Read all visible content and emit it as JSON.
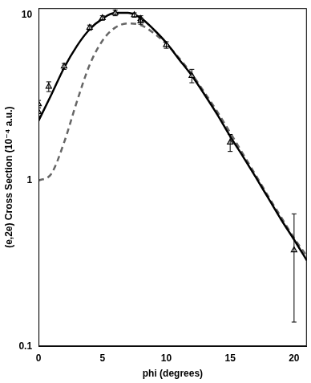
{
  "chart_data": {
    "type": "line",
    "x_label": "phi (degrees)",
    "y_label": "(e,2e) Cross Section (10⁻⁴ a.u.)",
    "log": "y",
    "grid": false,
    "xlim": [
      0,
      21
    ],
    "xticks": [
      0,
      5,
      10,
      15,
      20
    ],
    "ylim": [
      0.1,
      11
    ],
    "yticks": [
      0.1,
      1,
      10
    ],
    "series": [
      {
        "type": "scatter",
        "color": "#000000",
        "marker": "triangle",
        "line_style": "none",
        "x": [
          0,
          0,
          0.8,
          2,
          4,
          5,
          6,
          7.5,
          8,
          8,
          10,
          12,
          15,
          20
        ],
        "values": [
          2.9,
          2.6,
          3.7,
          4.9,
          8.4,
          9.6,
          10.3,
          10.0,
          9.5,
          9.2,
          6.6,
          4.3,
          1.7,
          0.38
        ],
        "yerr_minus": [
          0.15,
          0.15,
          0.25,
          0.2,
          0.3,
          0.3,
          0.4,
          0.3,
          0.4,
          0.4,
          0.3,
          0.4,
          0.2,
          0.24
        ],
        "yerr_plus": [
          0.15,
          0.15,
          0.25,
          0.2,
          0.3,
          0.3,
          0.4,
          0.3,
          0.4,
          0.4,
          0.3,
          0.4,
          0.2,
          0.25
        ]
      },
      {
        "type": "line",
        "color": "#000000",
        "line_style": "solid",
        "marker": "none",
        "x": [
          0,
          1,
          2,
          3,
          4,
          5,
          6,
          7,
          8,
          9,
          10,
          11,
          12,
          13,
          14,
          15,
          16,
          17,
          18,
          19,
          20,
          21
        ],
        "values": [
          2.3,
          3.3,
          4.8,
          6.5,
          8.2,
          9.5,
          10.3,
          10.3,
          9.6,
          8.2,
          6.8,
          5.4,
          4.3,
          3.3,
          2.5,
          1.85,
          1.4,
          1.05,
          0.78,
          0.58,
          0.44,
          0.33
        ]
      },
      {
        "type": "line",
        "color": "#666666",
        "line_style": "dashed",
        "marker": "none",
        "x": [
          0,
          1,
          2,
          3,
          4,
          5,
          6,
          7,
          8,
          9,
          10,
          11,
          12,
          13,
          14,
          15,
          16,
          17,
          18,
          19,
          20,
          21
        ],
        "values": [
          1.0,
          1.1,
          1.7,
          3.0,
          5.0,
          7.0,
          8.4,
          8.9,
          8.7,
          7.8,
          6.7,
          5.5,
          4.4,
          3.4,
          2.6,
          1.95,
          1.45,
          1.08,
          0.8,
          0.6,
          0.45,
          0.35
        ]
      }
    ]
  }
}
